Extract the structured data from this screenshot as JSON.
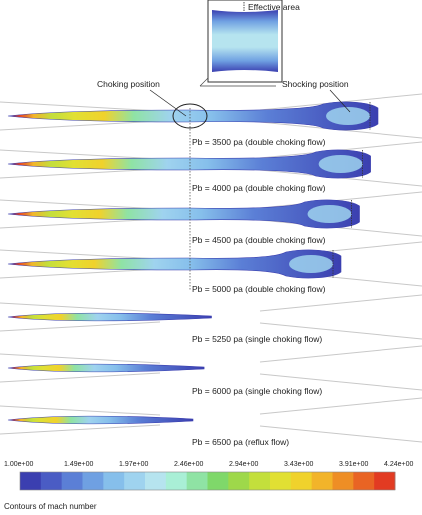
{
  "annotations": {
    "effective_area": "Effective area",
    "choking_position": "Choking position",
    "shocking_position": "Shocking position"
  },
  "cases": [
    {
      "label": "Pb = 3500 pa (double choking flow)",
      "jet_length": 1.0,
      "choking": true,
      "shock": true
    },
    {
      "label": "Pb = 4000 pa (double choking flow)",
      "jet_length": 0.98,
      "choking": true,
      "shock": true
    },
    {
      "label": "Pb = 4500 pa (double choking flow)",
      "jet_length": 0.95,
      "choking": true,
      "shock": true
    },
    {
      "label": "Pb = 5000 pa (double choking flow)",
      "jet_length": 0.9,
      "choking": true,
      "shock": true
    },
    {
      "label": "Pb = 5250 pa (single choking flow)",
      "jet_length": 0.55,
      "choking": false,
      "shock": false
    },
    {
      "label": "Pb = 6000 pa (single choking flow)",
      "jet_length": 0.53,
      "choking": false,
      "shock": false
    },
    {
      "label": "Pb = 6500 pa (reflux flow)",
      "jet_length": 0.5,
      "choking": false,
      "shock": false
    }
  ],
  "colorbar": {
    "ticks": [
      "1.00e+00",
      "1.49e+00",
      "1.97e+00",
      "2.46e+00",
      "2.94e+00",
      "3.43e+00",
      "3.91e+00",
      "4.24e+00"
    ],
    "colors": [
      "#3b3fb0",
      "#4a5cc4",
      "#5b7fd6",
      "#6fa0e2",
      "#86bfeb",
      "#9fd3ef",
      "#b6e4ef",
      "#a9efd6",
      "#8fe3a4",
      "#7fd86a",
      "#9ed84a",
      "#c3df3c",
      "#e1e033",
      "#f0d22c",
      "#f2b42a",
      "#ee8e25",
      "#e96424",
      "#e23b22"
    ]
  },
  "caption": "Contours of mach number"
}
